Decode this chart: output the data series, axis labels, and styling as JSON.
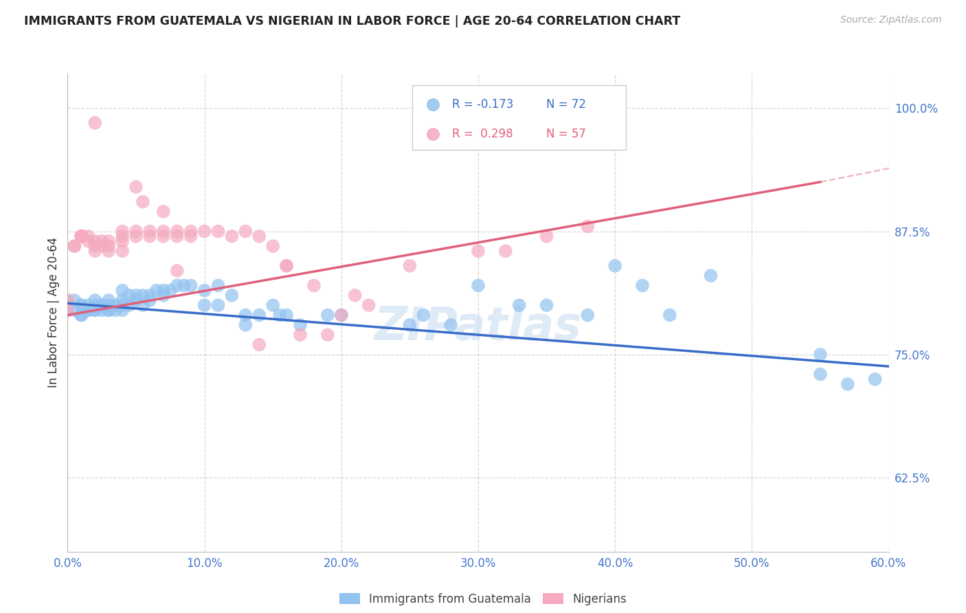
{
  "title": "IMMIGRANTS FROM GUATEMALA VS NIGERIAN IN LABOR FORCE | AGE 20-64 CORRELATION CHART",
  "source": "Source: ZipAtlas.com",
  "ylabel": "In Labor Force | Age 20-64",
  "xlim": [
    0.0,
    0.6
  ],
  "ylim": [
    0.55,
    1.035
  ],
  "yticks": [
    0.625,
    0.75,
    0.875,
    1.0
  ],
  "ytick_labels": [
    "62.5%",
    "75.0%",
    "87.5%",
    "100.0%"
  ],
  "xticks": [
    0.0,
    0.1,
    0.2,
    0.3,
    0.4,
    0.5,
    0.6
  ],
  "blue_color": "#92C2F0",
  "pink_color": "#F5AABF",
  "blue_line_color": "#3A6CC8",
  "pink_line_color": "#E0607A",
  "tick_label_color": "#4477CC",
  "watermark": "ZIPatlas",
  "watermark_color": "#C8DCEF",
  "watermark_alpha": 0.6,
  "watermark_fontsize": 48,
  "blue_scatter_x": [
    0.0,
    0.0,
    0.005,
    0.005,
    0.01,
    0.01,
    0.01,
    0.01,
    0.015,
    0.015,
    0.015,
    0.02,
    0.02,
    0.02,
    0.02,
    0.025,
    0.025,
    0.025,
    0.03,
    0.03,
    0.03,
    0.03,
    0.035,
    0.035,
    0.04,
    0.04,
    0.04,
    0.04,
    0.045,
    0.045,
    0.05,
    0.05,
    0.055,
    0.055,
    0.06,
    0.06,
    0.065,
    0.07,
    0.07,
    0.075,
    0.08,
    0.085,
    0.09,
    0.1,
    0.1,
    0.11,
    0.11,
    0.12,
    0.13,
    0.13,
    0.14,
    0.15,
    0.155,
    0.16,
    0.17,
    0.19,
    0.2,
    0.25,
    0.28,
    0.3,
    0.35,
    0.38,
    0.4,
    0.42,
    0.44,
    0.47,
    0.55,
    0.55,
    0.57,
    0.59,
    0.33,
    0.26
  ],
  "blue_scatter_y": [
    0.795,
    0.805,
    0.795,
    0.805,
    0.79,
    0.8,
    0.79,
    0.8,
    0.795,
    0.8,
    0.795,
    0.8,
    0.795,
    0.805,
    0.795,
    0.8,
    0.795,
    0.8,
    0.795,
    0.805,
    0.8,
    0.795,
    0.8,
    0.795,
    0.815,
    0.805,
    0.8,
    0.795,
    0.81,
    0.8,
    0.81,
    0.805,
    0.81,
    0.8,
    0.81,
    0.805,
    0.815,
    0.815,
    0.81,
    0.815,
    0.82,
    0.82,
    0.82,
    0.815,
    0.8,
    0.82,
    0.8,
    0.81,
    0.79,
    0.78,
    0.79,
    0.8,
    0.79,
    0.79,
    0.78,
    0.79,
    0.79,
    0.78,
    0.78,
    0.82,
    0.8,
    0.79,
    0.84,
    0.82,
    0.79,
    0.83,
    0.75,
    0.73,
    0.72,
    0.725,
    0.8,
    0.79
  ],
  "pink_scatter_x": [
    0.0,
    0.0,
    0.005,
    0.005,
    0.01,
    0.01,
    0.01,
    0.01,
    0.015,
    0.015,
    0.02,
    0.02,
    0.02,
    0.025,
    0.025,
    0.03,
    0.03,
    0.03,
    0.04,
    0.04,
    0.04,
    0.04,
    0.05,
    0.05,
    0.06,
    0.06,
    0.07,
    0.07,
    0.08,
    0.08,
    0.09,
    0.09,
    0.1,
    0.11,
    0.12,
    0.13,
    0.14,
    0.15,
    0.16,
    0.16,
    0.18,
    0.2,
    0.21,
    0.22,
    0.25,
    0.3,
    0.32,
    0.35,
    0.38,
    0.14,
    0.05,
    0.055,
    0.07,
    0.02,
    0.08,
    0.17,
    0.19
  ],
  "pink_scatter_y": [
    0.795,
    0.805,
    0.86,
    0.86,
    0.87,
    0.87,
    0.87,
    0.87,
    0.87,
    0.865,
    0.865,
    0.86,
    0.855,
    0.86,
    0.865,
    0.865,
    0.86,
    0.855,
    0.875,
    0.87,
    0.865,
    0.855,
    0.875,
    0.87,
    0.875,
    0.87,
    0.875,
    0.87,
    0.875,
    0.87,
    0.875,
    0.87,
    0.875,
    0.875,
    0.87,
    0.875,
    0.87,
    0.86,
    0.84,
    0.84,
    0.82,
    0.79,
    0.81,
    0.8,
    0.84,
    0.855,
    0.855,
    0.87,
    0.88,
    0.76,
    0.92,
    0.905,
    0.895,
    0.985,
    0.835,
    0.77,
    0.77
  ],
  "blue_trendline": [
    0.0,
    0.6,
    0.802,
    0.738
  ],
  "pink_trendline_solid": [
    0.0,
    0.55,
    0.79,
    0.925
  ],
  "pink_trendline_dash": [
    0.55,
    0.85,
    0.925,
    1.008
  ],
  "background_color": "#FFFFFF",
  "grid_color": "#CCCCCC",
  "title_fontsize": 12.5,
  "axis_label_fontsize": 12,
  "tick_fontsize": 12,
  "source_fontsize": 10
}
